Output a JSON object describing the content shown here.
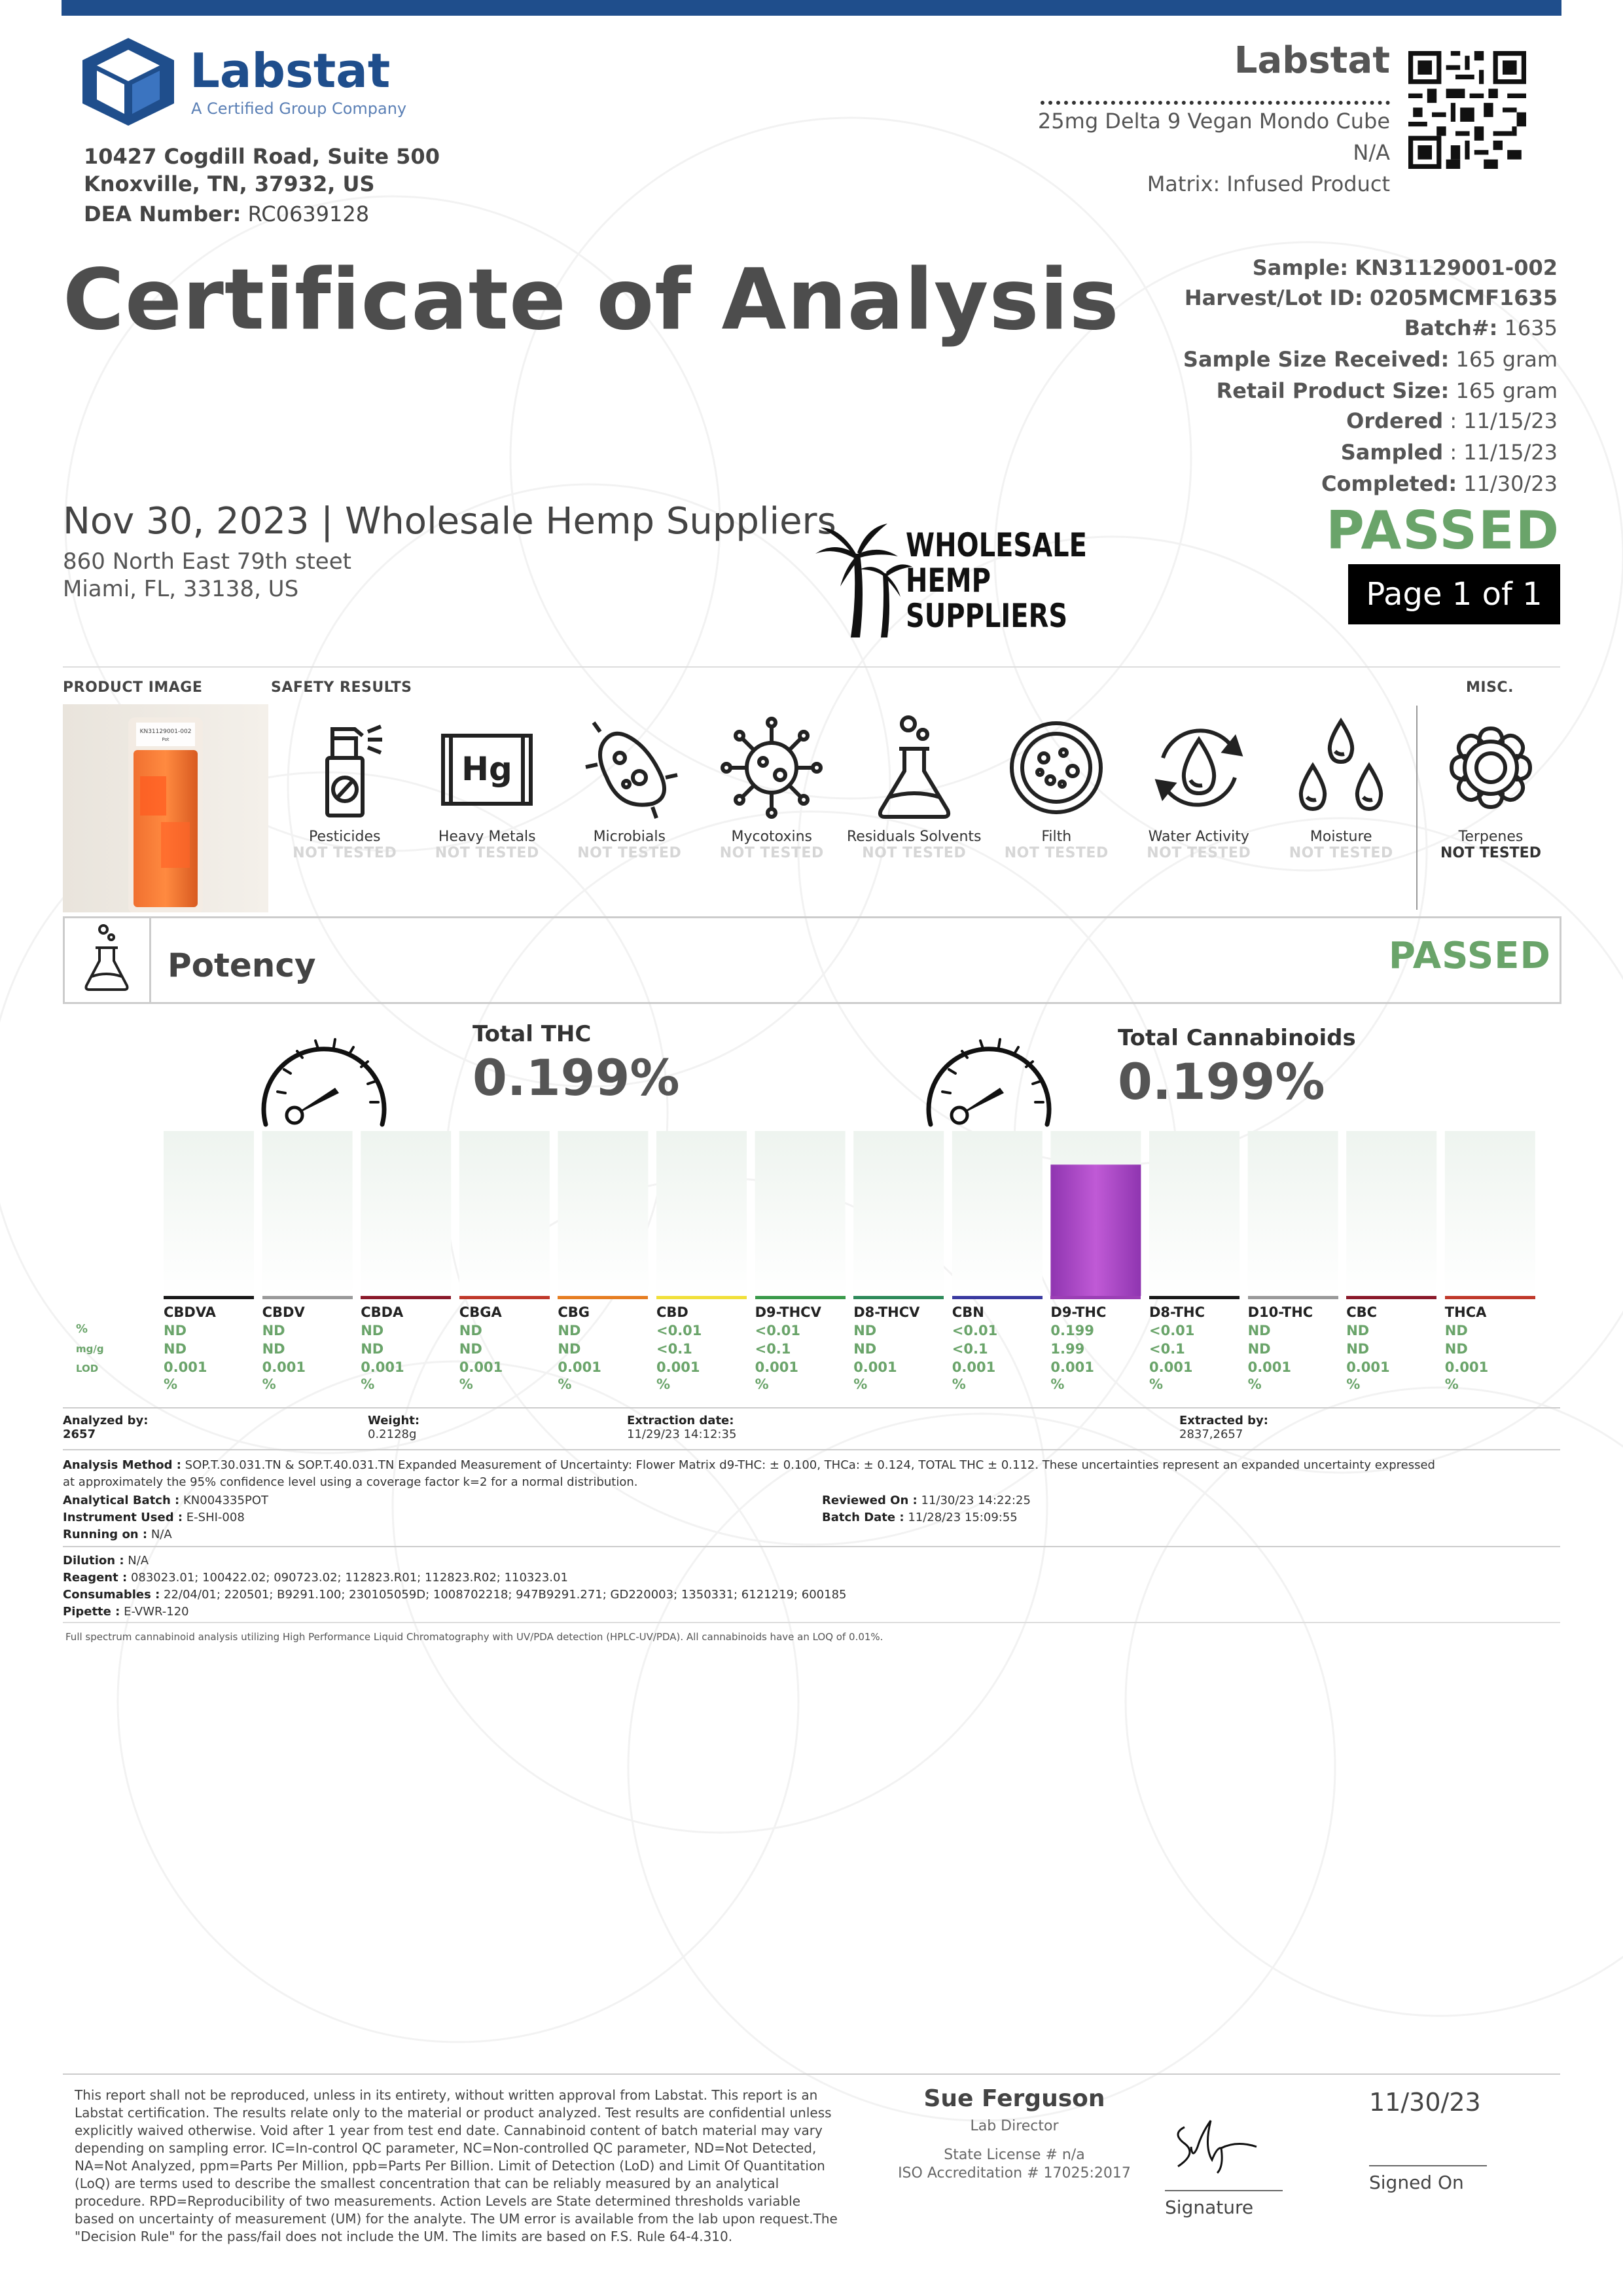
{
  "header": {
    "brand": "Labstat",
    "tagline": "A Certified Group Company",
    "address_line1": "10427 Cogdill Road, Suite 500",
    "address_line2": "Knoxville, TN, 37932, US",
    "dea_label": "DEA Number:",
    "dea_value": "RC0639128",
    "right_brand": "Labstat",
    "product_name": "25mg Delta 9 Vegan Mondo Cube",
    "product_na": "N/A",
    "matrix": "Matrix: Infused Product"
  },
  "title": "Certificate of Analysis",
  "sample_info": [
    {
      "label": "Sample:",
      "value": "KN31129001-002",
      "bold_value": true
    },
    {
      "label": "Harvest/Lot ID:",
      "value": "0205MCMF1635",
      "bold_value": true
    },
    {
      "label": "Batch#:",
      "value": "1635",
      "bold_value": false
    },
    {
      "label": "Sample Size Received:",
      "value": "165 gram",
      "bold_value": false
    },
    {
      "label": "Retail Product Size:",
      "value": "165 gram",
      "bold_value": false
    },
    {
      "label": "Ordered",
      "value": ": 11/15/23",
      "bold_value": false
    },
    {
      "label": "Sampled",
      "value": ": 11/15/23",
      "bold_value": false
    },
    {
      "label": "Completed:",
      "value": "11/30/23",
      "bold_value": false
    }
  ],
  "client": {
    "headline": "Nov 30, 2023 | Wholesale Hemp Suppliers",
    "street": "860 North East 79th steet",
    "city": "Miami, FL, 33138, US",
    "logo_line1": "WHOLESALE",
    "logo_line2": "HEMP",
    "logo_line3": "SUPPLIERS"
  },
  "status": {
    "passed": "PASSED",
    "page": "Page 1 of 1"
  },
  "sections": {
    "product_image": "PRODUCT IMAGE",
    "safety_results": "SAFETY RESULTS",
    "misc": "MISC.",
    "product_label": "KN31129001-002"
  },
  "safety": [
    {
      "name": "Pesticides",
      "status": "NOT TESTED",
      "icon": "spray-bottle-icon"
    },
    {
      "name": "Heavy Metals",
      "status": "NOT TESTED",
      "icon": "heavy-metals-icon"
    },
    {
      "name": "Microbials",
      "status": "NOT TESTED",
      "icon": "microbe-icon"
    },
    {
      "name": "Mycotoxins",
      "status": "NOT TESTED",
      "icon": "virus-icon"
    },
    {
      "name": "Residuals Solvents",
      "status": "NOT TESTED",
      "icon": "flask-icon"
    },
    {
      "name": "Filth",
      "status": "NOT TESTED",
      "icon": "petri-dish-icon"
    },
    {
      "name": "Water Activity",
      "status": "NOT TESTED",
      "icon": "water-drop-icon"
    },
    {
      "name": "Moisture",
      "status": "NOT TESTED",
      "icon": "droplets-icon"
    }
  ],
  "misc_item": {
    "name": "Terpenes",
    "status": "NOT TESTED",
    "icon": "flower-icon"
  },
  "potency": {
    "title": "Potency",
    "status": "PASSED",
    "total_thc_label": "Total THC",
    "total_thc_value": "0.199%",
    "total_cann_label": "Total Cannabinoids",
    "total_cann_value": "0.199%",
    "row_labels": [
      "%",
      "mg/g",
      "LOD"
    ]
  },
  "chart_data": {
    "type": "bar",
    "categories": [
      "CBDVA",
      "CBDV",
      "CBDA",
      "CBGA",
      "CBG",
      "CBD",
      "D9-THCV",
      "D8-THCV",
      "CBN",
      "D9-THC",
      "D8-THC",
      "D10-THC",
      "CBC",
      "THCA"
    ],
    "values": [
      0,
      0,
      0,
      0,
      0,
      0,
      0,
      0,
      0,
      0.199,
      0,
      0,
      0,
      0
    ],
    "ylim": [
      0,
      0.25
    ],
    "underline_colors": [
      "#1a1a1a",
      "#9a9a9a",
      "#8b1a2b",
      "#c0392b",
      "#e67e22",
      "#f1e03a",
      "#3a9a4a",
      "#2e8a5a",
      "#3a3aa0",
      "#9b3fb5",
      "#1a1a1a",
      "#9a9a9a",
      "#8b1a2b",
      "#c0392b"
    ],
    "bar_color": "#a646c0",
    "rows": {
      "pct": [
        "ND",
        "ND",
        "ND",
        "ND",
        "ND",
        "<0.01",
        "<0.01",
        "ND",
        "<0.01",
        "0.199",
        "<0.01",
        "ND",
        "ND",
        "ND"
      ],
      "mgg": [
        "ND",
        "ND",
        "ND",
        "ND",
        "ND",
        "<0.1",
        "<0.1",
        "ND",
        "<0.1",
        "1.99",
        "<0.1",
        "ND",
        "ND",
        "ND"
      ],
      "lod": [
        "0.001",
        "0.001",
        "0.001",
        "0.001",
        "0.001",
        "0.001",
        "0.001",
        "0.001",
        "0.001",
        "0.001",
        "0.001",
        "0.001",
        "0.001",
        "0.001"
      ],
      "lod_unit": "%"
    }
  },
  "analysis": {
    "analyzed_by_label": "Analyzed by:",
    "analyzed_by": "2657",
    "weight_label": "Weight:",
    "weight": "0.2128g",
    "extraction_label": "Extraction date:",
    "extraction": "11/29/23 14:12:35",
    "extracted_by_label": "Extracted by:",
    "extracted_by": "2837,2657",
    "method_label": "Analysis Method :",
    "method_text": "SOP.T.30.031.TN & SOP.T.40.031.TN Expanded Measurement of Uncertainty: Flower Matrix d9-THC: ± 0.100, THCa: ± 0.124, TOTAL THC ± 0.112. These uncertainties represent an expanded uncertainty expressed",
    "method_text2": "at approximately the 95% confidence level using a coverage factor k=2 for a normal distribution.",
    "batch_label": "Analytical Batch :",
    "batch": "KN004335POT",
    "instrument_label": "Instrument Used :",
    "instrument": "E-SHI-008",
    "running_label": "Running on :",
    "running": "N/A",
    "reviewed_label": "Reviewed On :",
    "reviewed": "11/30/23 14:22:25",
    "batch_date_label": "Batch Date :",
    "batch_date": "11/28/23 15:09:55",
    "dilution_label": "Dilution :",
    "dilution": "N/A",
    "reagent_label": "Reagent :",
    "reagent": "083023.01; 100422.02; 090723.02; 112823.R01; 112823.R02; 110323.01",
    "consumables_label": "Consumables :",
    "consumables": "22/04/01; 220501; B9291.100; 230105059D; 1008702218; 947B9291.271; GD220003; 1350331; 6121219; 600185",
    "pipette_label": "Pipette :",
    "pipette": "E-VWR-120",
    "note": "Full spectrum cannabinoid analysis utilizing High Performance Liquid Chromatography with UV/PDA detection (HPLC-UV/PDA). All cannabinoids have an LOQ of 0.01%."
  },
  "footer": {
    "disclaimer": [
      "This report shall not be reproduced, unless in its entirety, without written approval from Labstat. This report is an",
      "Labstat certification. The results relate only to the material or product analyzed. Test results are confidential unless",
      "explicitly waived otherwise. Void after 1 year from test end date. Cannabinoid content of batch material may vary",
      "depending on sampling error. IC=In-control QC parameter, NC=Non-controlled QC parameter, ND=Not Detected,",
      "NA=Not Analyzed, ppm=Parts Per Million, ppb=Parts Per Billion. Limit of Detection (LoD) and Limit Of Quantitation",
      "(LoQ) are terms used to describe the smallest concentration that can be reliably measured by an analytical",
      "procedure. RPD=Reproducibility of two measurements. Action Levels are State determined thresholds variable",
      "based on uncertainty of measurement (UM) for the analyte. The UM error is available from the lab upon request.The",
      "\"Decision Rule\" for the pass/fail does not include the UM. The limits are based on F.S. Rule 64-4.310."
    ],
    "signer_name": "Sue Ferguson",
    "signer_title": "Lab Director",
    "license": "State License # n/a",
    "iso": "ISO Accreditation # 17025:2017",
    "signature_label": "Signature",
    "signed_date": "11/30/23",
    "signed_on_label": "Signed On"
  }
}
